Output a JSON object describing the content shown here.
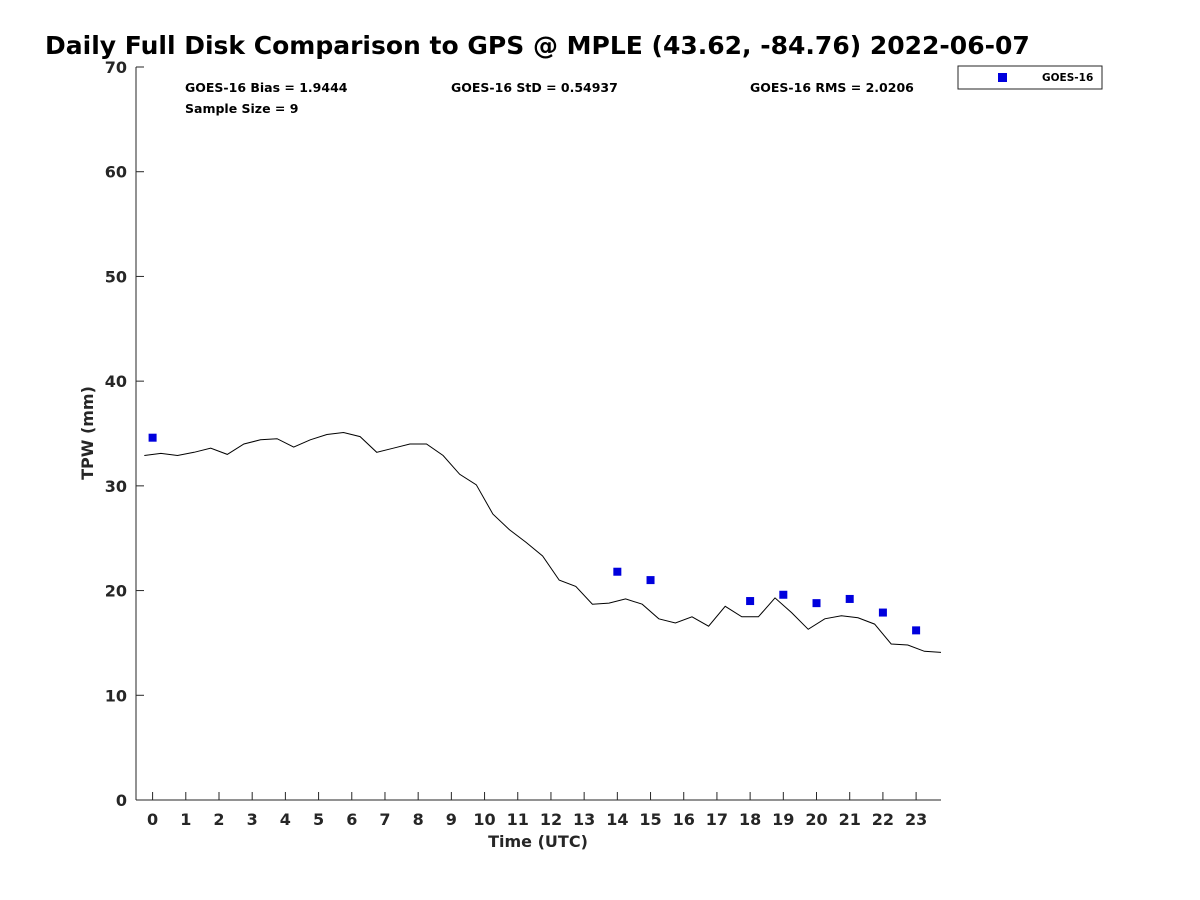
{
  "chart_data": {
    "type": "scatter",
    "title": "Daily Full Disk Comparison to GPS @ MPLE (43.62, -84.76) 2022-06-07",
    "xlabel": "Time (UTC)",
    "ylabel": "TPW (mm)",
    "xlim": [
      -0.5,
      23.75
    ],
    "ylim": [
      0,
      70
    ],
    "x_ticks": [
      0,
      1,
      2,
      3,
      4,
      5,
      6,
      7,
      8,
      9,
      10,
      11,
      12,
      13,
      14,
      15,
      16,
      17,
      18,
      19,
      20,
      21,
      22,
      23
    ],
    "y_ticks": [
      0,
      10,
      20,
      30,
      40,
      50,
      60,
      70
    ],
    "stats": {
      "bias": "GOES-16 Bias = 1.9444",
      "std": "GOES-16 StD = 0.54937",
      "rms": "GOES-16 RMS = 2.0206",
      "sample": "Sample Size = 9"
    },
    "legend": {
      "label": "GOES-16",
      "color": "#0000dd",
      "position": "top-right"
    },
    "series": [
      {
        "name": "GPS",
        "type": "line",
        "color": "#000000",
        "x": [
          -0.25,
          0.25,
          0.75,
          1.25,
          1.75,
          2.25,
          2.75,
          3.25,
          3.75,
          4.25,
          4.75,
          5.25,
          5.75,
          6.25,
          6.75,
          7.25,
          7.75,
          8.25,
          8.75,
          9.25,
          9.75,
          10.25,
          10.75,
          11.25,
          11.75,
          12.25,
          12.75,
          13.25,
          13.75,
          14.25,
          14.75,
          15.25,
          15.75,
          16.25,
          16.75,
          17.25,
          17.75,
          18.25,
          18.75,
          19.25,
          19.75,
          20.25,
          20.75,
          21.25,
          21.75,
          22.25,
          22.75,
          23.25,
          23.75
        ],
        "y": [
          32.9,
          33.1,
          32.9,
          33.2,
          33.6,
          33.0,
          34.0,
          34.4,
          34.5,
          33.7,
          34.4,
          34.9,
          35.1,
          34.7,
          33.2,
          33.6,
          34.0,
          34.0,
          32.9,
          31.1,
          30.1,
          27.3,
          25.8,
          24.6,
          23.3,
          21.0,
          20.4,
          18.7,
          18.8,
          19.2,
          18.7,
          17.3,
          16.9,
          17.5,
          16.6,
          18.5,
          17.5,
          17.5,
          19.3,
          17.9,
          16.3,
          17.3,
          17.6,
          17.4,
          16.8,
          14.9,
          14.8,
          14.2,
          14.1
        ]
      },
      {
        "name": "GOES-16",
        "type": "scatter",
        "color": "#0000dd",
        "x": [
          0,
          14,
          15,
          18,
          19,
          20,
          21,
          22,
          23
        ],
        "y": [
          34.6,
          21.8,
          21.0,
          19.0,
          19.6,
          18.8,
          19.2,
          17.9,
          16.2
        ]
      }
    ]
  }
}
